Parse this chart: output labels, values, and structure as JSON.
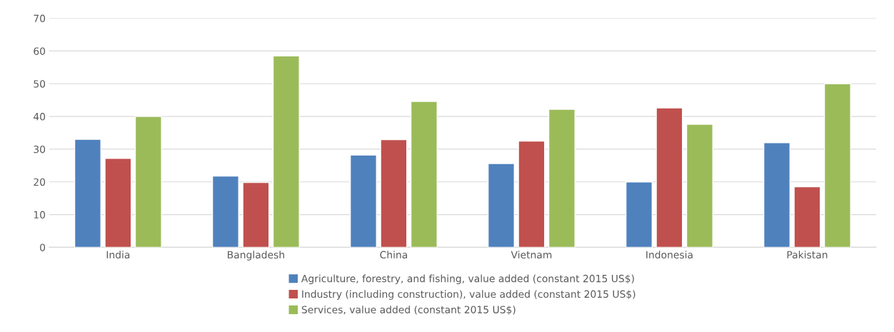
{
  "chart_data": {
    "type": "bar",
    "categories": [
      "India",
      "Bangladesh",
      "China",
      "Vietnam",
      "Indonesia",
      "Pakistan"
    ],
    "series": [
      {
        "name": "Agriculture, forestry, and fishing, value added (constant 2015 US$)",
        "color": "#4f81bd",
        "values": [
          33,
          21.8,
          28.2,
          25.6,
          20,
          32
        ]
      },
      {
        "name": "Industry (including construction), value added (constant 2015 US$)",
        "color": "#c0504d",
        "values": [
          27.2,
          19.8,
          32.9,
          32.5,
          42.6,
          18.5
        ]
      },
      {
        "name": "Services, value added (constant 2015 US$)",
        "color": "#9bbb59",
        "values": [
          40,
          58.5,
          44.6,
          42.2,
          37.6,
          50
        ]
      }
    ],
    "ylim": [
      0,
      70
    ],
    "yticks": [
      0,
      10,
      20,
      30,
      40,
      50,
      60,
      70
    ],
    "grid": "y",
    "legend": "bottom"
  }
}
